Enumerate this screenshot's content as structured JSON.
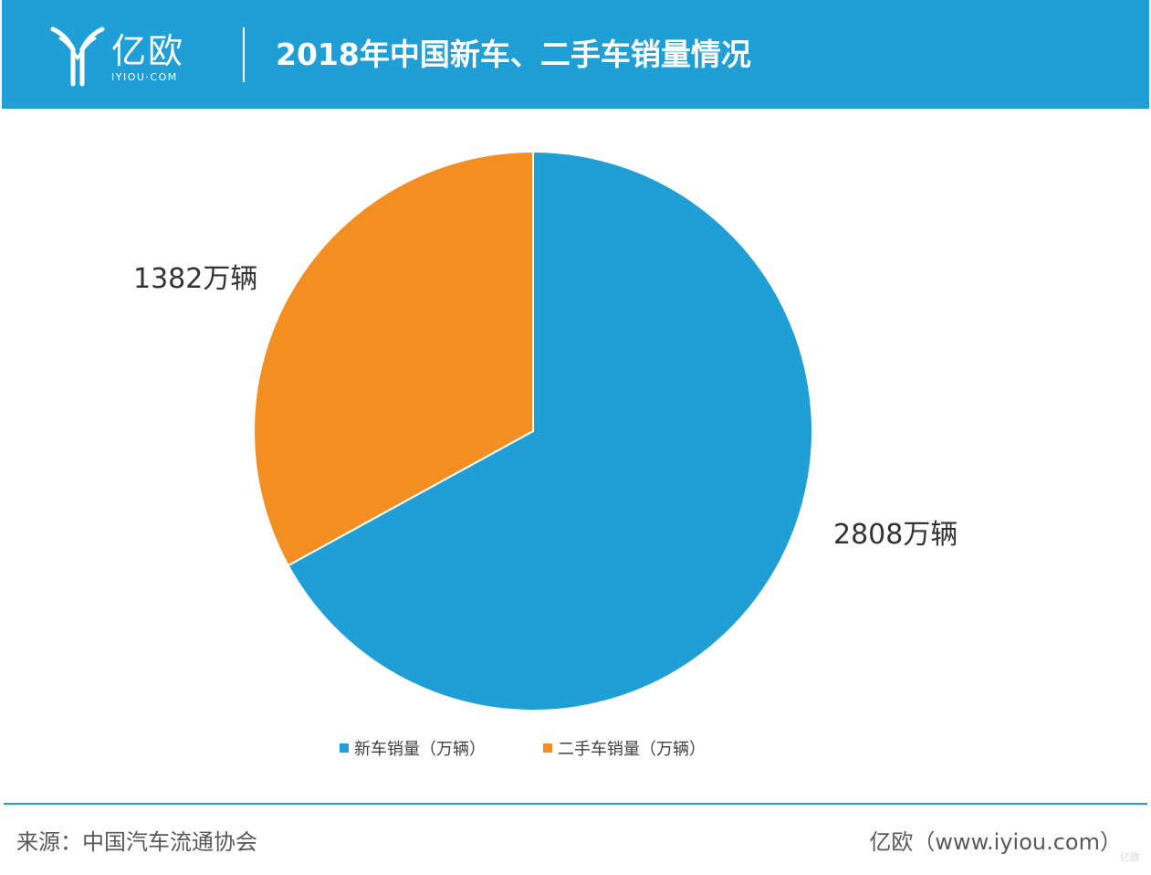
{
  "header": {
    "logo_text": "亿欧",
    "logo_sub": "IYIOU·COM",
    "title": "2018年中国新车、二手车销量情况"
  },
  "colors": {
    "header_bg": "#1f9fd5",
    "new_car": "#1f9fd5",
    "used_car": "#f38f22"
  },
  "chart_data": {
    "type": "pie",
    "title": "2018年中国新车、二手车销量情况",
    "categories": [
      "新车销量（万辆）",
      "二手车销量（万辆）"
    ],
    "values": [
      2808,
      1382
    ],
    "data_labels": [
      "2808万辆",
      "1382万辆"
    ],
    "colors": [
      "#1f9fd5",
      "#f38f22"
    ],
    "start_angle": "12 o'clock",
    "direction": "clockwise",
    "legend_position": "bottom"
  },
  "footer": {
    "source": "来源：中国汽车流通协会",
    "brand": "亿欧（www.iyiou.com）",
    "watermark": "亿欧"
  }
}
